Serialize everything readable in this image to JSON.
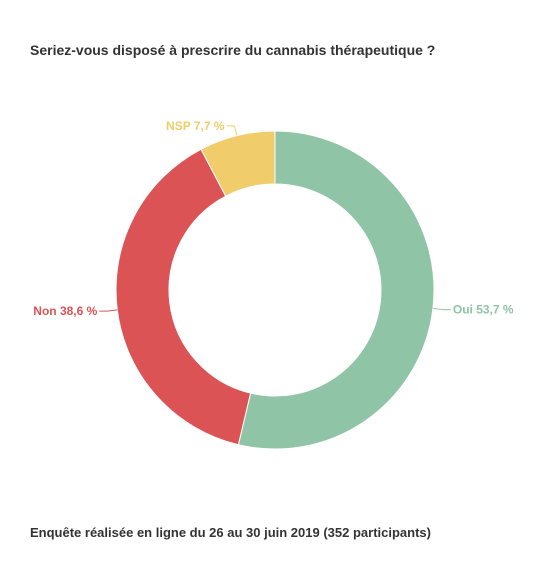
{
  "chart_data": {
    "type": "pie",
    "variant": "donut",
    "title": "Seriez-vous disposé à prescrire du cannabis thérapeutique ?",
    "caption": "Enquête réalisée en ligne du 26 au 30 juin 2019 (352 participants)",
    "slices": [
      {
        "category": "Oui",
        "value": 53.7,
        "label": "Oui 53,7 %",
        "color": "#8fc4a6"
      },
      {
        "category": "Non",
        "value": 38.6,
        "label": "Non 38,6 %",
        "color": "#dc5356"
      },
      {
        "category": "NSP",
        "value": 7.7,
        "label": "NSP 7,7 %",
        "color": "#f0cd6a"
      }
    ]
  }
}
